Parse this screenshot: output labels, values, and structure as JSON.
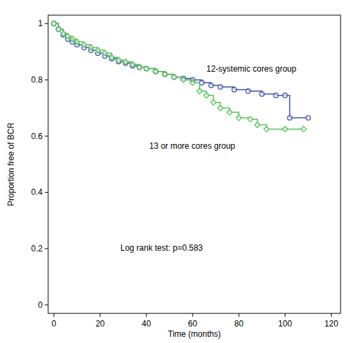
{
  "chart_data": {
    "type": "line",
    "line_style": "step",
    "x_label": "Time (months)",
    "y_label": "Proportion free of BCR",
    "annotations": [
      "Log rank test: p=0.583"
    ],
    "xlim": [
      -2.5,
      124
    ],
    "ylim": [
      -0.03,
      1.03
    ],
    "xticks": [
      0,
      20,
      40,
      60,
      80,
      100,
      120
    ],
    "yticks": [
      0,
      0.2,
      0.4,
      0.6,
      0.8,
      1
    ],
    "grid": false,
    "series": [
      {
        "name": "12-systemic cores group",
        "color": "#3f51a6",
        "marker": "circle",
        "x": [
          0,
          2,
          4,
          6,
          8,
          10,
          13,
          16,
          19,
          22,
          25,
          28,
          31,
          34,
          37,
          40,
          44,
          48,
          52,
          56,
          60,
          64,
          68,
          72,
          78,
          84,
          90,
          96,
          100,
          102,
          110
        ],
        "values": [
          1.0,
          0.98,
          0.96,
          0.945,
          0.935,
          0.925,
          0.915,
          0.905,
          0.895,
          0.885,
          0.875,
          0.865,
          0.86,
          0.85,
          0.845,
          0.84,
          0.83,
          0.82,
          0.81,
          0.805,
          0.8,
          0.79,
          0.78,
          0.775,
          0.765,
          0.76,
          0.75,
          0.745,
          0.745,
          0.665,
          0.665
        ]
      },
      {
        "name": "13 or more cores group",
        "color": "#57c057",
        "marker": "diamond",
        "x": [
          0,
          2,
          4,
          6,
          8,
          10,
          13,
          16,
          19,
          22,
          25,
          28,
          31,
          34,
          37,
          40,
          44,
          48,
          52,
          56,
          60,
          63,
          66,
          69,
          72,
          76,
          80,
          85,
          88,
          92,
          100,
          108
        ],
        "values": [
          1.0,
          0.98,
          0.965,
          0.955,
          0.945,
          0.935,
          0.925,
          0.915,
          0.905,
          0.895,
          0.88,
          0.87,
          0.865,
          0.855,
          0.845,
          0.84,
          0.83,
          0.82,
          0.81,
          0.8,
          0.79,
          0.76,
          0.745,
          0.72,
          0.7,
          0.685,
          0.665,
          0.66,
          0.64,
          0.625,
          0.625,
          0.625
        ]
      }
    ]
  }
}
